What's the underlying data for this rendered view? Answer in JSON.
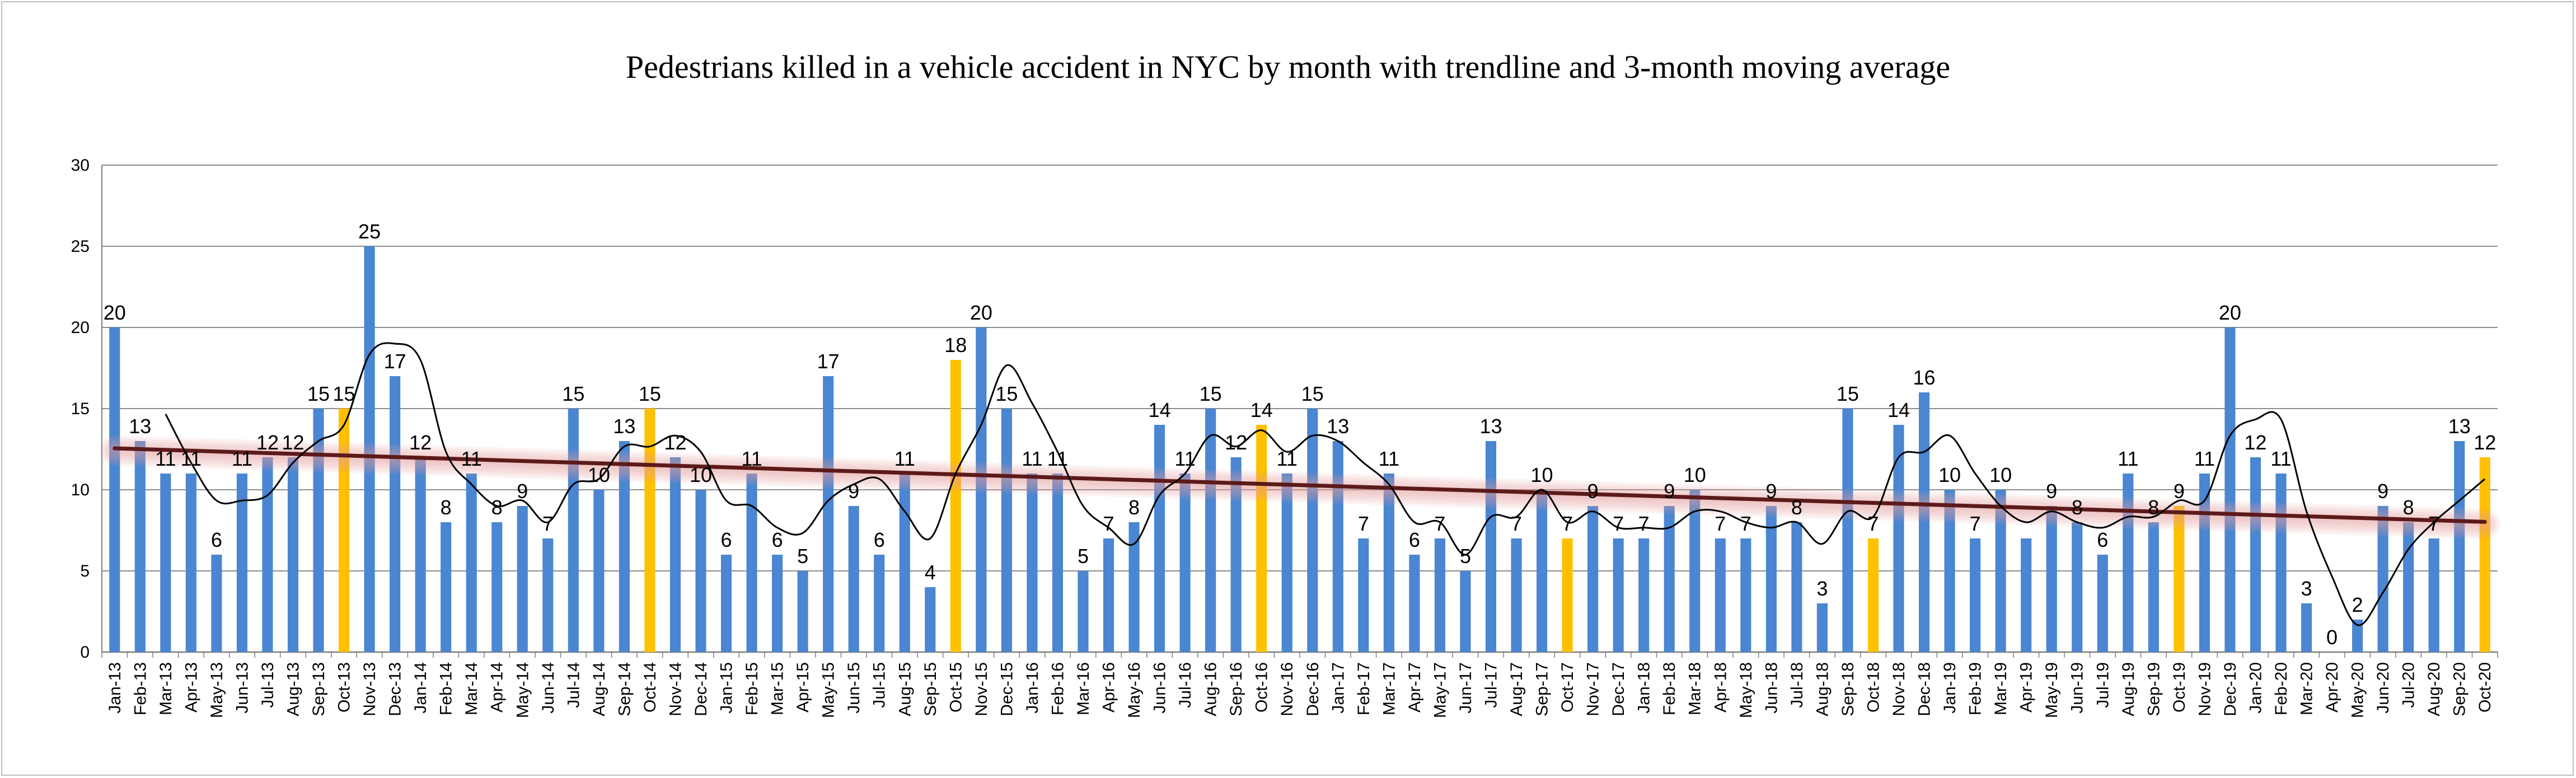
{
  "chart_data": {
    "type": "bar",
    "title": "Pedestrians killed in a vehicle accident  in NYC  by month with trendline and 3-month moving average",
    "xlabel": "",
    "ylabel": "",
    "ylim": [
      0,
      30
    ],
    "yticks": [
      0,
      5,
      10,
      15,
      20,
      25,
      30
    ],
    "grid": true,
    "legend": "none",
    "categories": [
      "Jan-13",
      "Feb-13",
      "Mar-13",
      "Apr-13",
      "May-13",
      "Jun-13",
      "Jul-13",
      "Aug-13",
      "Sep-13",
      "Oct-13",
      "Nov-13",
      "Dec-13",
      "Jan-14",
      "Feb-14",
      "Mar-14",
      "Apr-14",
      "May-14",
      "Jun-14",
      "Jul-14",
      "Aug-14",
      "Sep-14",
      "Oct-14",
      "Nov-14",
      "Dec-14",
      "Jan-15",
      "Feb-15",
      "Mar-15",
      "Apr-15",
      "May-15",
      "Jun-15",
      "Jul-15",
      "Aug-15",
      "Sep-15",
      "Oct-15",
      "Nov-15",
      "Dec-15",
      "Jan-16",
      "Feb-16",
      "Mar-16",
      "Apr-16",
      "May-16",
      "Jun-16",
      "Jul-16",
      "Aug-16",
      "Sep-16",
      "Oct-16",
      "Nov-16",
      "Dec-16",
      "Jan-17",
      "Feb-17",
      "Mar-17",
      "Apr-17",
      "May-17",
      "Jun-17",
      "Jul-17",
      "Aug-17",
      "Sep-17",
      "Oct-17",
      "Nov-17",
      "Dec-17",
      "Jan-18",
      "Feb-18",
      "Mar-18",
      "Apr-18",
      "May-18",
      "Jun-18",
      "Jul-18",
      "Aug-18",
      "Sep-18",
      "Oct-18",
      "Nov-18",
      "Dec-18",
      "Jan-19",
      "Feb-19",
      "Mar-19",
      "Apr-19",
      "May-19",
      "Jun-19",
      "Jul-19",
      "Aug-19",
      "Sep-19",
      "Oct-19",
      "Nov-19",
      "Dec-19",
      "Jan-20",
      "Feb-20",
      "Mar-20",
      "Apr-20",
      "May-20",
      "Jun-20",
      "Jul-20",
      "Aug-20",
      "Sep-20",
      "Oct-20"
    ],
    "values": [
      20,
      13,
      11,
      11,
      6,
      11,
      12,
      12,
      15,
      15,
      25,
      17,
      12,
      8,
      11,
      8,
      9,
      7,
      15,
      10,
      13,
      15,
      12,
      10,
      6,
      11,
      6,
      5,
      17,
      9,
      6,
      11,
      4,
      18,
      20,
      15,
      11,
      11,
      5,
      7,
      8,
      14,
      11,
      15,
      12,
      14,
      11,
      15,
      13,
      7,
      11,
      6,
      7,
      5,
      13,
      7,
      10,
      7,
      9,
      7,
      7,
      9,
      10,
      7,
      7,
      9,
      8,
      3,
      15,
      7,
      14,
      16,
      10,
      7,
      10,
      7,
      9,
      8,
      6,
      11,
      8,
      9,
      11,
      20,
      12,
      11,
      3,
      0,
      2,
      9,
      8,
      7,
      13,
      12
    ],
    "highlight_indices": [
      9,
      21,
      33,
      45,
      57,
      69,
      81,
      93
    ],
    "series": [
      {
        "kind": "bar",
        "color": "#4a86d1"
      },
      {
        "kind": "bar-highlight",
        "color": "#ffc000"
      },
      {
        "kind": "trendline",
        "color": "#5c1a1a",
        "y_start": 12.6,
        "y_end": 8.0
      },
      {
        "kind": "moving-average-3",
        "color": "#000000"
      }
    ],
    "data_labels": [
      {
        "i": 0,
        "text": "20"
      },
      {
        "i": 1,
        "text": "13"
      },
      {
        "i": 2,
        "text": "11"
      },
      {
        "i": 3,
        "text": "11"
      },
      {
        "i": 4,
        "text": "6"
      },
      {
        "i": 5,
        "text": "11"
      },
      {
        "i": 6,
        "text": "12"
      },
      {
        "i": 7,
        "text": "12"
      },
      {
        "i": 8,
        "text": "15"
      },
      {
        "i": 9,
        "text": "15"
      },
      {
        "i": 10,
        "text": "25"
      },
      {
        "i": 11,
        "text": "17"
      },
      {
        "i": 12,
        "text": "12"
      },
      {
        "i": 13,
        "text": "8"
      },
      {
        "i": 14,
        "text": "11"
      },
      {
        "i": 15,
        "text": "8"
      },
      {
        "i": 16,
        "text": "9"
      },
      {
        "i": 17,
        "text": "7"
      },
      {
        "i": 18,
        "text": "15"
      },
      {
        "i": 19,
        "text": "10"
      },
      {
        "i": 20,
        "text": "13"
      },
      {
        "i": 21,
        "text": "15"
      },
      {
        "i": 22,
        "text": "12"
      },
      {
        "i": 23,
        "text": "10"
      },
      {
        "i": 24,
        "text": "6"
      },
      {
        "i": 25,
        "text": "11"
      },
      {
        "i": 26,
        "text": "6"
      },
      {
        "i": 27,
        "text": "5"
      },
      {
        "i": 28,
        "text": "17"
      },
      {
        "i": 29,
        "text": "9"
      },
      {
        "i": 30,
        "text": "6"
      },
      {
        "i": 31,
        "text": "11"
      },
      {
        "i": 32,
        "text": "4"
      },
      {
        "i": 33,
        "text": "18"
      },
      {
        "i": 34,
        "text": "20"
      },
      {
        "i": 35,
        "text": "15"
      },
      {
        "i": 36,
        "text": "11"
      },
      {
        "i": 37,
        "text": "11"
      },
      {
        "i": 38,
        "text": "5"
      },
      {
        "i": 39,
        "text": "7"
      },
      {
        "i": 40,
        "text": "8"
      },
      {
        "i": 41,
        "text": "14"
      },
      {
        "i": 42,
        "text": "11"
      },
      {
        "i": 43,
        "text": "15"
      },
      {
        "i": 44,
        "text": "12"
      },
      {
        "i": 45,
        "text": "14"
      },
      {
        "i": 46,
        "text": "11"
      },
      {
        "i": 47,
        "text": "15"
      },
      {
        "i": 48,
        "text": "13"
      },
      {
        "i": 49,
        "text": "7"
      },
      {
        "i": 50,
        "text": "11"
      },
      {
        "i": 51,
        "text": "6"
      },
      {
        "i": 52,
        "text": "7"
      },
      {
        "i": 53,
        "text": "5"
      },
      {
        "i": 54,
        "text": "13"
      },
      {
        "i": 55,
        "text": "7"
      },
      {
        "i": 56,
        "text": "10"
      },
      {
        "i": 57,
        "text": "7"
      },
      {
        "i": 58,
        "text": "9"
      },
      {
        "i": 59,
        "text": "7"
      },
      {
        "i": 60,
        "text": "7"
      },
      {
        "i": 61,
        "text": "9"
      },
      {
        "i": 62,
        "text": "10"
      },
      {
        "i": 63,
        "text": "7"
      },
      {
        "i": 64,
        "text": "7"
      },
      {
        "i": 65,
        "text": "9"
      },
      {
        "i": 66,
        "text": "8"
      },
      {
        "i": 67,
        "text": "3"
      },
      {
        "i": 68,
        "text": "15"
      },
      {
        "i": 69,
        "text": "7"
      },
      {
        "i": 70,
        "text": "14"
      },
      {
        "i": 71,
        "text": "16"
      },
      {
        "i": 72,
        "text": "10"
      },
      {
        "i": 73,
        "text": "7"
      },
      {
        "i": 74,
        "text": "10"
      },
      {
        "i": 76,
        "text": "9"
      },
      {
        "i": 77,
        "text": "8"
      },
      {
        "i": 78,
        "text": "6"
      },
      {
        "i": 79,
        "text": "11"
      },
      {
        "i": 80,
        "text": "8"
      },
      {
        "i": 81,
        "text": "9"
      },
      {
        "i": 82,
        "text": "11"
      },
      {
        "i": 83,
        "text": "20"
      },
      {
        "i": 84,
        "text": "12"
      },
      {
        "i": 85,
        "text": "11"
      },
      {
        "i": 86,
        "text": "3"
      },
      {
        "i": 87,
        "text": "0"
      },
      {
        "i": 88,
        "text": "2"
      },
      {
        "i": 89,
        "text": "9"
      },
      {
        "i": 90,
        "text": "8"
      },
      {
        "i": 91,
        "text": "7"
      },
      {
        "i": 92,
        "text": "13"
      },
      {
        "i": 93,
        "text": "12"
      }
    ]
  }
}
